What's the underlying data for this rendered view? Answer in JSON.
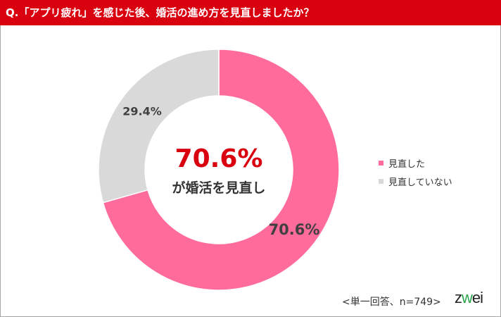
{
  "header": {
    "title": "Q.「アプリ疲れ」を感じた後、婚活の進め方を見直しましたか？"
  },
  "chart_data": {
    "type": "pie",
    "variant": "donut",
    "categories": [
      "見直した",
      "見直していない"
    ],
    "values": [
      70.6,
      29.4
    ],
    "data_labels": [
      "70.6%",
      "29.4%"
    ],
    "colors": [
      "#ff6b9a",
      "#d9d9d9"
    ],
    "legend_placement": "right",
    "center_value": "70.6%",
    "center_label": "が婚活を見直し"
  },
  "footnote": "<単一回答、n=749>",
  "logo": {
    "text": "zwei"
  },
  "colors": {
    "header": "#d9000f",
    "center_value": "#d9000f"
  }
}
